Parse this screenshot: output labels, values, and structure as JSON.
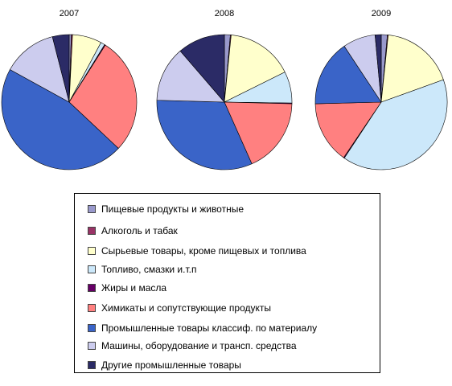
{
  "chart_data": {
    "type": "pie",
    "charts": [
      {
        "title": "2007",
        "values": [
          0.5,
          0.3,
          7,
          1,
          0.2,
          28,
          46,
          13,
          4
        ]
      },
      {
        "title": "2008",
        "values": [
          1.5,
          0.2,
          17,
          8,
          0.2,
          19,
          34,
          14,
          12
        ]
      },
      {
        "title": "2009",
        "values": [
          1.5,
          0.2,
          18,
          40,
          0.2,
          15,
          16,
          8,
          1.5
        ]
      }
    ],
    "legend": {
      "placement": "bottom",
      "entries": [
        {
          "label": "Пищевые продукты и животные",
          "color": "#9999cc"
        },
        {
          "label": "Алкоголь и табак",
          "color": "#993366"
        },
        {
          "label": "Сырьевые товары, кроме пищевых и топлива",
          "color": "#ffffcc"
        },
        {
          "label": "Топливо, смазки и.т.п",
          "color": "#cce8fa"
        },
        {
          "label": "Жиры и масла",
          "color": "#660066"
        },
        {
          "label": "Химикаты и сопутствующие продукты",
          "color": "#ff8080"
        },
        {
          "label": "Промышленные товары  классиф. по материалу",
          "color": "#3a64c8"
        },
        {
          "label": "Машины, оборудование и трансп. средства",
          "color": "#ccccee"
        },
        {
          "label": "Другие промышленные товары",
          "color": "#2b2b66"
        }
      ]
    }
  }
}
